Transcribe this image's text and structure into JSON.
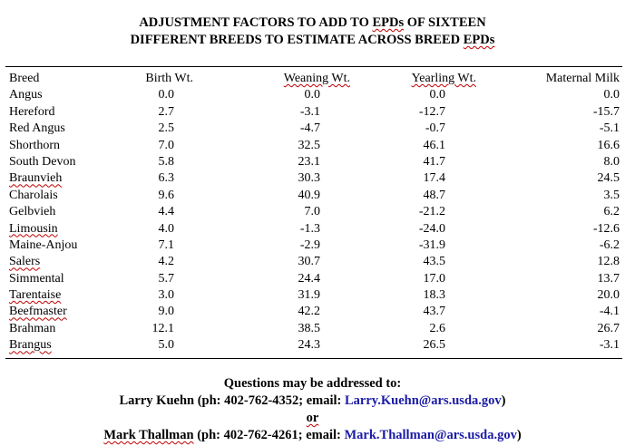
{
  "title": {
    "line1_a": "ADJUSTMENT FACTORS TO ADD TO ",
    "line1_epds": "EPDs",
    "line1_b": " OF SIXTEEN",
    "line2_a": "DIFFERENT BREEDS TO ESTIMATE ACROSS BREED ",
    "line2_epds": "EPDs"
  },
  "columns": [
    "Breed",
    "Birth Wt.",
    "Weaning Wt.",
    "Yearling Wt.",
    "Maternal Milk"
  ],
  "rows": [
    [
      "Angus",
      "0.0",
      "0.0",
      "0.0",
      "0.0"
    ],
    [
      "Hereford",
      "2.7",
      "-3.1",
      "-12.7",
      "-15.7"
    ],
    [
      "Red Angus",
      "2.5",
      "-4.7",
      "-0.7",
      "-5.1"
    ],
    [
      "Shorthorn",
      "7.0",
      "32.5",
      "46.1",
      "16.6"
    ],
    [
      "South Devon",
      "5.8",
      "23.1",
      "41.7",
      "8.0"
    ],
    [
      "Braunvieh",
      "6.3",
      "30.3",
      "17.4",
      "24.5"
    ],
    [
      "Charolais",
      "9.6",
      "40.9",
      "48.7",
      "3.5"
    ],
    [
      "Gelbvieh",
      "4.4",
      "7.0",
      "-21.2",
      "6.2"
    ],
    [
      "Limousin",
      "4.0",
      "-1.3",
      "-24.0",
      "-12.6"
    ],
    [
      "Maine-Anjou",
      "7.1",
      "-2.9",
      "-31.9",
      "-6.2"
    ],
    [
      "Salers",
      "4.2",
      "30.7",
      "43.5",
      "12.8"
    ],
    [
      "Simmental",
      "5.7",
      "24.4",
      "17.0",
      "13.7"
    ],
    [
      "Tarentaise",
      "3.0",
      "31.9",
      "18.3",
      "20.0"
    ],
    [
      "Beefmaster",
      "9.0",
      "42.2",
      "43.7",
      "-4.1"
    ],
    [
      "Brahman",
      "12.1",
      "38.5",
      "2.6",
      "26.7"
    ],
    [
      "Brangus",
      "5.0",
      "24.3",
      "26.5",
      "-3.1"
    ]
  ],
  "squiggle_breeds": [
    5,
    8,
    10,
    12,
    13,
    15
  ],
  "footer": {
    "questions": "Questions may be addressed to:",
    "contact1_prefix": "Larry Kuehn (ph: 402-762-4352; email: ",
    "contact1_email": "Larry.Kuehn@ars.usda.gov",
    "contact1_suffix": ")",
    "or": "or",
    "contact2_name": "Mark Thallman",
    "contact2_prefix": " (ph: 402-762-4261; email: ",
    "contact2_email": "Mark.Thallman@ars.usda.gov",
    "contact2_suffix": ")"
  },
  "colors": {
    "email": "#1a1aa6",
    "spell_squiggle": "#c00000"
  }
}
